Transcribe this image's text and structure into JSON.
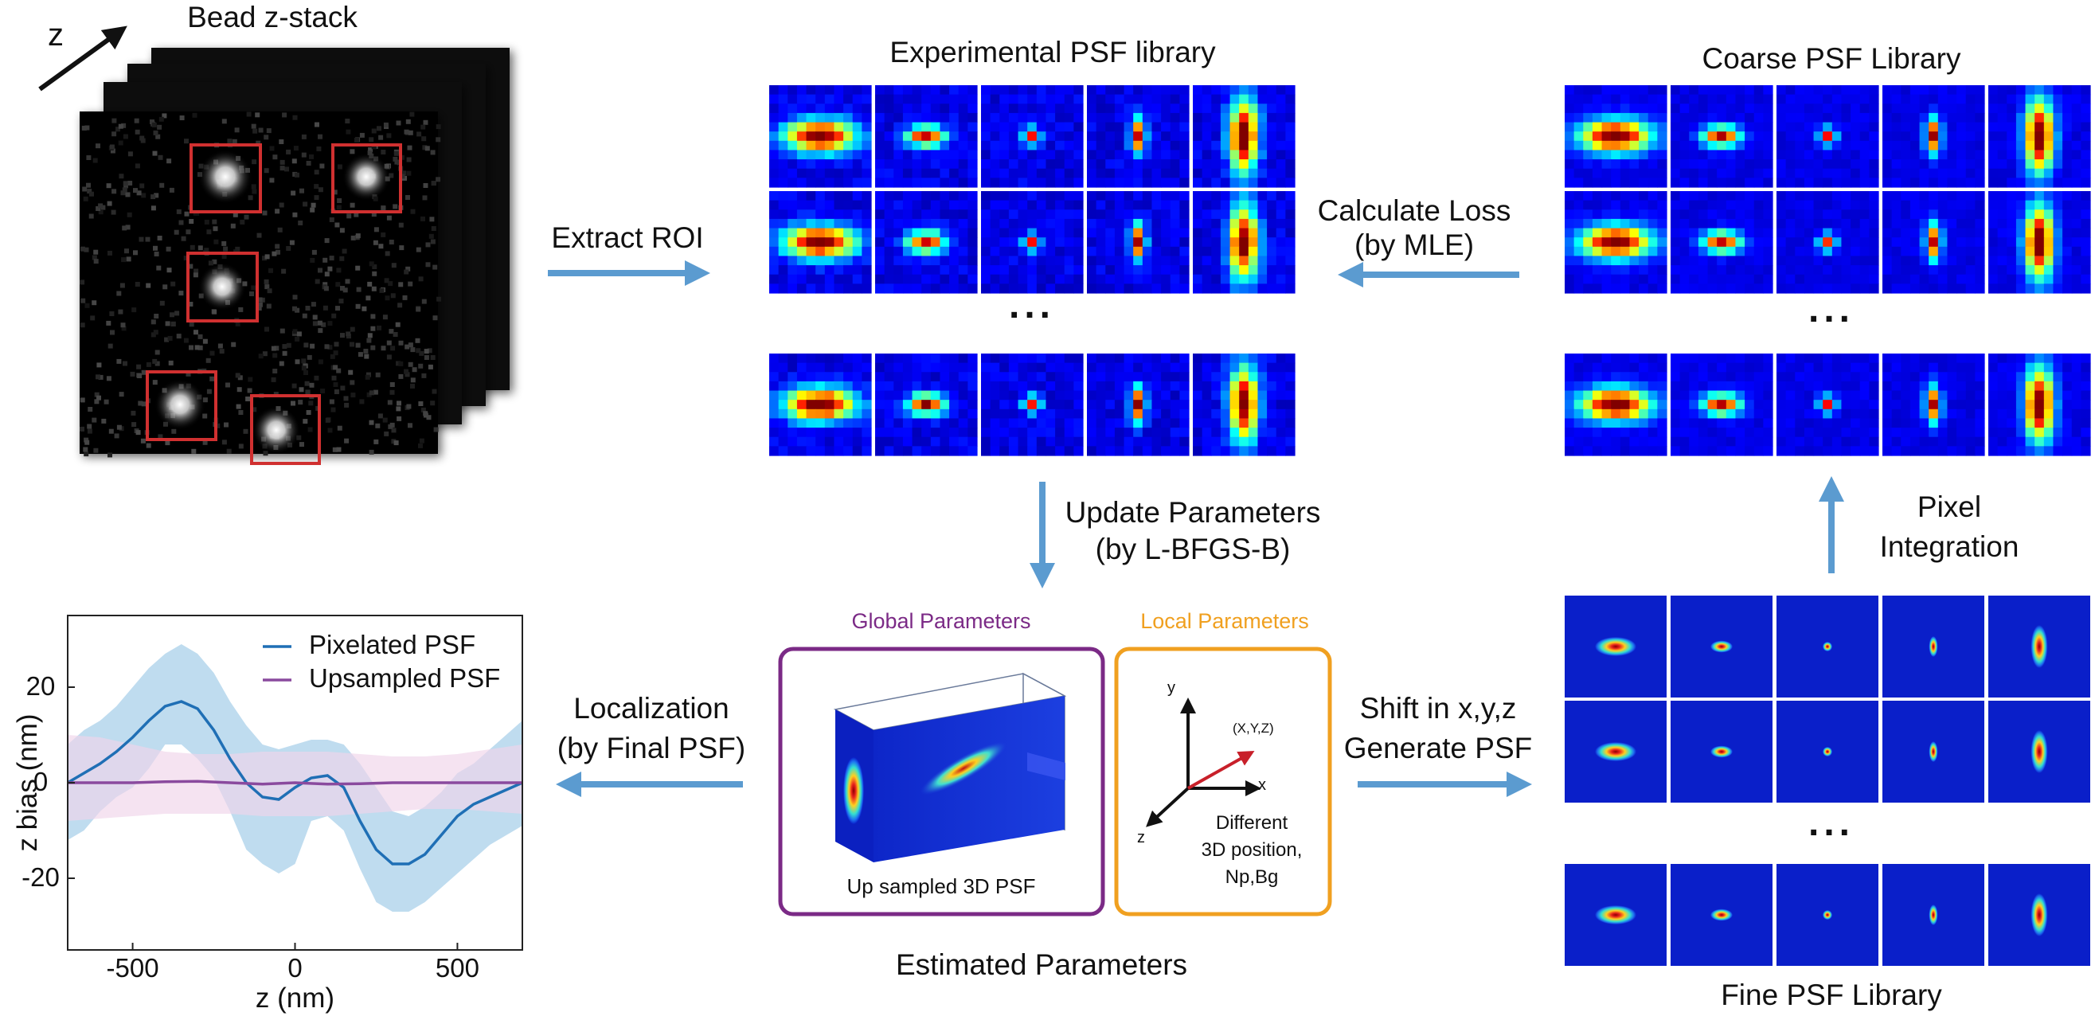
{
  "bead_stack": {
    "title": "Bead z-stack",
    "axis_label": "z"
  },
  "steps": {
    "extract": "Extract ROI",
    "loss_line1": "Calculate Loss",
    "loss_line2": "(by MLE)",
    "update_line1": "Update Parameters",
    "update_line2": "(by L-BFGS-B)",
    "pixel_line1": "Pixel",
    "pixel_line2": "Integration",
    "localization_line1": "Localization",
    "localization_line2": "(by Final PSF)",
    "shift_line1": "Shift in x,y,z",
    "shift_line2": "Generate PSF"
  },
  "libraries": {
    "experimental": {
      "title": "Experimental PSF library"
    },
    "coarse": {
      "title": "Coarse  PSF Library"
    },
    "fine": {
      "title": "Fine PSF Library"
    },
    "ellipsis": "..."
  },
  "parameters": {
    "footer": "Estimated Parameters",
    "global": {
      "title": "Global Parameters",
      "caption": "Up sampled 3D PSF",
      "color": "#7b2a86"
    },
    "local": {
      "title": "Local Parameters",
      "color": "#f0a020",
      "axes": {
        "x": "x",
        "y": "y",
        "z": "z",
        "point": "(X,Y,Z)"
      },
      "caption_line1": "Different",
      "caption_line2": "3D position,",
      "caption_line3": "Np,Bg"
    }
  },
  "arrow_color": "#5b9bd0",
  "chart_data": {
    "type": "line",
    "xlabel": "z (nm)",
    "ylabel": "z bias (nm)",
    "xlim": [
      -700,
      700
    ],
    "ylim": [
      -35,
      35
    ],
    "xticks": [
      -500,
      0,
      500
    ],
    "yticks": [
      -20,
      0,
      20
    ],
    "legend_position": "top-right",
    "series": [
      {
        "name": "Pixelated PSF",
        "color": "#1f6fb5",
        "band_color": "#a9d0ea",
        "x": [
          -700,
          -650,
          -600,
          -550,
          -500,
          -450,
          -400,
          -350,
          -300,
          -250,
          -200,
          -150,
          -100,
          -50,
          0,
          50,
          100,
          150,
          200,
          250,
          300,
          350,
          400,
          450,
          500,
          550,
          600,
          650,
          700
        ],
        "y": [
          0,
          2,
          4,
          6.5,
          9.5,
          13,
          16,
          17,
          15.5,
          11,
          5,
          0,
          -3,
          -3.5,
          -1,
          1,
          1.5,
          -1,
          -8,
          -14,
          -17,
          -17,
          -15,
          -11,
          -7,
          -4.5,
          -3,
          -1.5,
          0
        ],
        "lower": [
          -12,
          -10,
          -6,
          -3,
          -1,
          3,
          8,
          8,
          5,
          1,
          -6,
          -14,
          -17,
          -19,
          -17,
          -8,
          -7,
          -10,
          -18,
          -25,
          -27,
          -27,
          -25,
          -22,
          -19,
          -16,
          -13,
          -11,
          -9
        ],
        "upper": [
          8,
          11,
          13,
          16,
          20,
          24,
          27,
          29,
          27,
          23,
          17,
          12,
          8,
          7,
          8,
          9,
          9,
          8,
          4,
          -1,
          -6,
          -7,
          -5,
          -2,
          2,
          4,
          7,
          10,
          13
        ]
      },
      {
        "name": "Upsampled PSF",
        "color": "#8a4a9e",
        "band_color": "#f0d4ea",
        "x": [
          -700,
          -600,
          -500,
          -400,
          -300,
          -200,
          -100,
          0,
          100,
          200,
          300,
          400,
          500,
          600,
          700
        ],
        "y": [
          0,
          0,
          0,
          0.2,
          0.3,
          0,
          -0.3,
          0,
          -0.3,
          -0.2,
          0,
          0,
          0,
          0,
          0
        ],
        "lower": [
          -8,
          -7.5,
          -7,
          -6.5,
          -6.5,
          -6.5,
          -7,
          -7,
          -7,
          -6.5,
          -6,
          -5.5,
          -5.5,
          -6,
          -6.5
        ],
        "upper": [
          10,
          9.5,
          8,
          6.5,
          6,
          6,
          6.5,
          6.5,
          6.5,
          6,
          5.5,
          5.5,
          6,
          7,
          8
        ]
      }
    ]
  }
}
